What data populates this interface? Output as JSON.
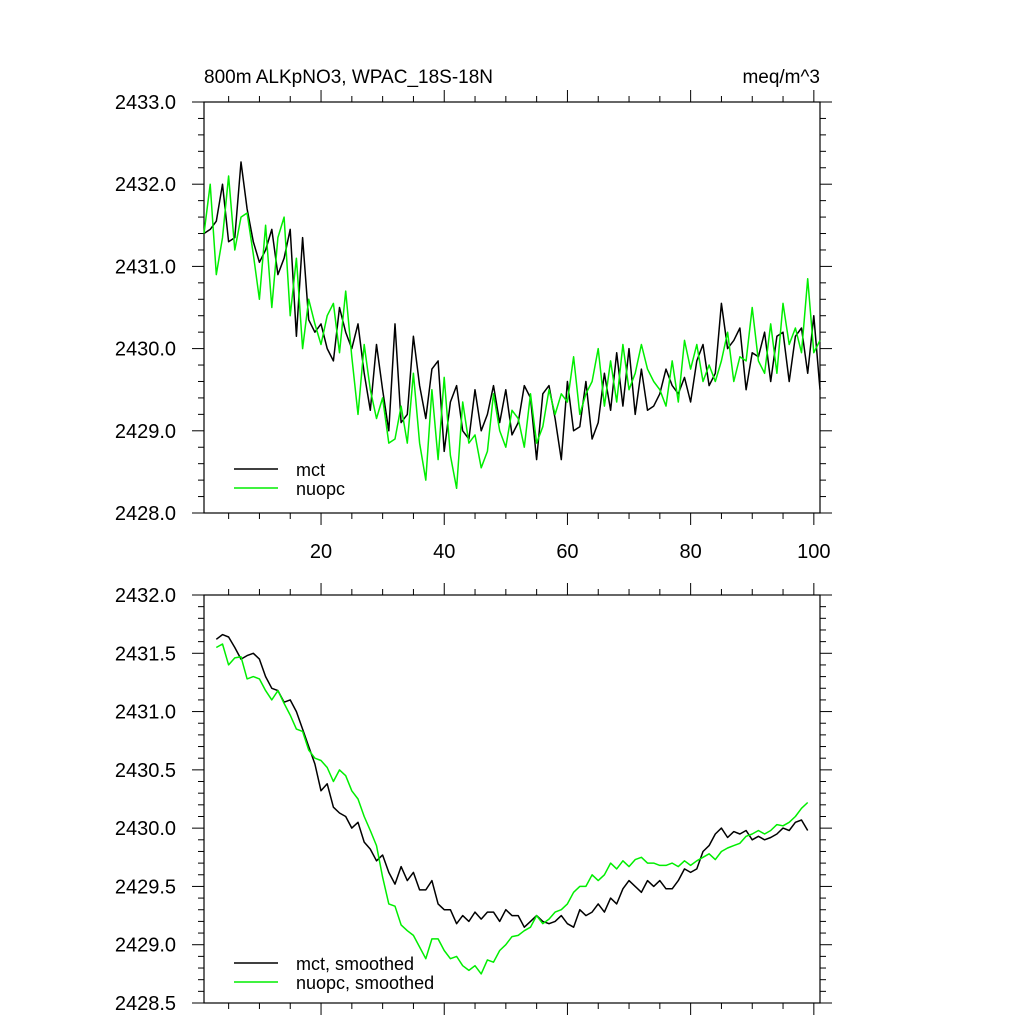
{
  "header": {
    "title": "800m ALKpNO3, WPAC_18S-18N",
    "units": "meq/m^3"
  },
  "colors": {
    "mct": "#000000",
    "nuopc": "#00ee00",
    "frame": "#000000"
  },
  "chart_data": [
    {
      "type": "line",
      "title": "800m ALKpNO3, WPAC_18S-18N",
      "units": "meq/m^3",
      "xlim": [
        1,
        101
      ],
      "ylim": [
        2428.0,
        2433.0
      ],
      "xticks": [
        20,
        40,
        60,
        80,
        100
      ],
      "xtick_labels": [
        "20",
        "40",
        "60",
        "80",
        "100"
      ],
      "yticks": [
        2428.0,
        2429.0,
        2430.0,
        2431.0,
        2432.0,
        2433.0
      ],
      "ytick_labels": [
        "2428.0",
        "2429.0",
        "2430.0",
        "2431.0",
        "2432.0",
        "2433.0"
      ],
      "legend_position": "bottom-left",
      "x": [
        1,
        2,
        3,
        4,
        5,
        6,
        7,
        8,
        9,
        10,
        11,
        12,
        13,
        14,
        15,
        16,
        17,
        18,
        19,
        20,
        21,
        22,
        23,
        24,
        25,
        26,
        27,
        28,
        29,
        30,
        31,
        32,
        33,
        34,
        35,
        36,
        37,
        38,
        39,
        40,
        41,
        42,
        43,
        44,
        45,
        46,
        47,
        48,
        49,
        50,
        51,
        52,
        53,
        54,
        55,
        56,
        57,
        58,
        59,
        60,
        61,
        62,
        63,
        64,
        65,
        66,
        67,
        68,
        69,
        70,
        71,
        72,
        73,
        74,
        75,
        76,
        77,
        78,
        79,
        80,
        81,
        82,
        83,
        84,
        85,
        86,
        87,
        88,
        89,
        90,
        91,
        92,
        93,
        94,
        95,
        96,
        97,
        98,
        99,
        100,
        101
      ],
      "series": [
        {
          "name": "mct",
          "values": [
            2431.4,
            2431.45,
            2431.55,
            2432.0,
            2431.3,
            2431.35,
            2432.27,
            2431.7,
            2431.3,
            2431.05,
            2431.2,
            2431.45,
            2430.9,
            2431.1,
            2431.45,
            2430.15,
            2431.35,
            2430.35,
            2430.2,
            2430.3,
            2430.0,
            2429.85,
            2430.5,
            2430.2,
            2430.0,
            2430.3,
            2429.7,
            2429.25,
            2430.05,
            2429.5,
            2429.0,
            2430.3,
            2429.1,
            2429.2,
            2430.15,
            2429.55,
            2429.15,
            2429.75,
            2429.85,
            2428.75,
            2429.35,
            2429.55,
            2429.0,
            2428.9,
            2429.5,
            2429.0,
            2429.2,
            2429.55,
            2429.1,
            2429.5,
            2428.95,
            2429.1,
            2429.55,
            2429.4,
            2428.65,
            2429.45,
            2429.55,
            2429.15,
            2428.65,
            2429.6,
            2429.0,
            2429.05,
            2429.6,
            2428.9,
            2429.1,
            2429.7,
            2429.25,
            2429.95,
            2429.3,
            2430.0,
            2429.2,
            2429.75,
            2429.25,
            2429.3,
            2429.45,
            2429.75,
            2429.55,
            2429.45,
            2429.65,
            2429.35,
            2429.85,
            2430.05,
            2429.55,
            2429.7,
            2430.55,
            2430.0,
            2430.1,
            2430.25,
            2429.5,
            2429.95,
            2429.9,
            2430.2,
            2429.6,
            2430.15,
            2430.2,
            2429.6,
            2430.15,
            2430.25,
            2429.7,
            2430.4,
            2429.5
          ]
        },
        {
          "name": "nuopc",
          "values": [
            2431.4,
            2432.0,
            2430.9,
            2431.35,
            2432.1,
            2431.2,
            2431.6,
            2431.65,
            2431.15,
            2430.6,
            2431.5,
            2430.5,
            2431.35,
            2431.6,
            2430.4,
            2431.1,
            2430.0,
            2430.6,
            2430.3,
            2430.05,
            2430.4,
            2430.55,
            2429.95,
            2430.7,
            2429.9,
            2429.2,
            2430.05,
            2429.5,
            2429.15,
            2429.4,
            2428.85,
            2428.9,
            2429.3,
            2428.85,
            2429.7,
            2428.85,
            2428.4,
            2429.5,
            2428.65,
            2429.65,
            2428.7,
            2428.3,
            2429.35,
            2428.85,
            2428.95,
            2428.55,
            2428.75,
            2429.45,
            2429.0,
            2428.8,
            2429.25,
            2429.15,
            2428.8,
            2429.45,
            2428.85,
            2429.05,
            2429.5,
            2429.2,
            2429.45,
            2429.35,
            2429.9,
            2429.2,
            2429.45,
            2429.6,
            2430.0,
            2429.3,
            2429.85,
            2429.35,
            2430.05,
            2429.5,
            2429.7,
            2430.05,
            2429.75,
            2429.6,
            2429.5,
            2429.3,
            2429.85,
            2429.35,
            2430.1,
            2429.75,
            2430.05,
            2429.6,
            2429.8,
            2429.6,
            2429.85,
            2430.2,
            2429.6,
            2429.9,
            2429.85,
            2430.5,
            2429.85,
            2429.7,
            2430.3,
            2429.7,
            2430.55,
            2430.05,
            2430.25,
            2429.95,
            2430.85,
            2429.95,
            2430.1
          ]
        }
      ]
    },
    {
      "type": "line",
      "xlim": [
        1,
        101
      ],
      "ylim": [
        2428.5,
        2432.0
      ],
      "yticks": [
        2428.5,
        2429.0,
        2429.5,
        2430.0,
        2430.5,
        2431.0,
        2431.5,
        2432.0
      ],
      "ytick_labels": [
        "2428.5",
        "2429.0",
        "2429.5",
        "2430.0",
        "2430.5",
        "2431.0",
        "2431.5",
        "2432.0"
      ],
      "legend_position": "bottom-left",
      "x": [
        3,
        4,
        5,
        6,
        7,
        8,
        9,
        10,
        11,
        12,
        13,
        14,
        15,
        16,
        17,
        18,
        19,
        20,
        21,
        22,
        23,
        24,
        25,
        26,
        27,
        28,
        29,
        30,
        31,
        32,
        33,
        34,
        35,
        36,
        37,
        38,
        39,
        40,
        41,
        42,
        43,
        44,
        45,
        46,
        47,
        48,
        49,
        50,
        51,
        52,
        53,
        54,
        55,
        56,
        57,
        58,
        59,
        60,
        61,
        62,
        63,
        64,
        65,
        66,
        67,
        68,
        69,
        70,
        71,
        72,
        73,
        74,
        75,
        76,
        77,
        78,
        79,
        80,
        81,
        82,
        83,
        84,
        85,
        86,
        87,
        88,
        89,
        90,
        91,
        92,
        93,
        94,
        95,
        96,
        97,
        98,
        99
      ],
      "series": [
        {
          "name": "mct, smoothed",
          "values": [
            2431.62,
            2431.66,
            2431.64,
            2431.55,
            2431.45,
            2431.48,
            2431.5,
            2431.45,
            2431.3,
            2431.2,
            2431.18,
            2431.08,
            2431.1,
            2431.0,
            2430.85,
            2430.7,
            2430.55,
            2430.32,
            2430.38,
            2430.18,
            2430.13,
            2430.1,
            2430.0,
            2430.05,
            2429.88,
            2429.82,
            2429.72,
            2429.77,
            2429.62,
            2429.52,
            2429.67,
            2429.55,
            2429.62,
            2429.47,
            2429.47,
            2429.55,
            2429.35,
            2429.3,
            2429.3,
            2429.18,
            2429.25,
            2429.2,
            2429.28,
            2429.22,
            2429.28,
            2429.28,
            2429.2,
            2429.3,
            2429.25,
            2429.25,
            2429.15,
            2429.2,
            2429.25,
            2429.2,
            2429.18,
            2429.2,
            2429.25,
            2429.18,
            2429.15,
            2429.3,
            2429.25,
            2429.28,
            2429.35,
            2429.28,
            2429.4,
            2429.35,
            2429.48,
            2429.55,
            2429.5,
            2429.45,
            2429.55,
            2429.5,
            2429.55,
            2429.48,
            2429.48,
            2429.55,
            2429.65,
            2429.62,
            2429.65,
            2429.8,
            2429.85,
            2429.95,
            2430.0,
            2429.92,
            2429.97,
            2429.95,
            2429.98,
            2429.9,
            2429.93,
            2429.9,
            2429.92,
            2429.95,
            2430.0,
            2429.98,
            2430.05,
            2430.07,
            2429.98
          ]
        },
        {
          "name": "nuopc, smoothed",
          "values": [
            2431.55,
            2431.58,
            2431.4,
            2431.46,
            2431.47,
            2431.28,
            2431.3,
            2431.28,
            2431.18,
            2431.1,
            2431.18,
            2431.07,
            2430.97,
            2430.85,
            2430.83,
            2430.67,
            2430.6,
            2430.58,
            2430.52,
            2430.4,
            2430.5,
            2430.45,
            2430.32,
            2430.25,
            2430.1,
            2429.98,
            2429.85,
            2429.58,
            2429.35,
            2429.33,
            2429.17,
            2429.12,
            2429.08,
            2428.98,
            2428.88,
            2429.05,
            2429.05,
            2428.95,
            2428.88,
            2428.9,
            2428.82,
            2428.78,
            2428.82,
            2428.75,
            2428.87,
            2428.85,
            2428.95,
            2429.0,
            2429.07,
            2429.08,
            2429.12,
            2429.15,
            2429.25,
            2429.18,
            2429.22,
            2429.28,
            2429.3,
            2429.35,
            2429.45,
            2429.5,
            2429.5,
            2429.6,
            2429.55,
            2429.6,
            2429.7,
            2429.65,
            2429.72,
            2429.67,
            2429.73,
            2429.75,
            2429.7,
            2429.7,
            2429.68,
            2429.68,
            2429.7,
            2429.67,
            2429.72,
            2429.68,
            2429.72,
            2429.75,
            2429.78,
            2429.73,
            2429.8,
            2429.83,
            2429.85,
            2429.87,
            2429.93,
            2429.95,
            2429.98,
            2429.95,
            2429.98,
            2430.03,
            2430.02,
            2430.05,
            2430.1,
            2430.17,
            2430.22
          ]
        }
      ]
    }
  ]
}
